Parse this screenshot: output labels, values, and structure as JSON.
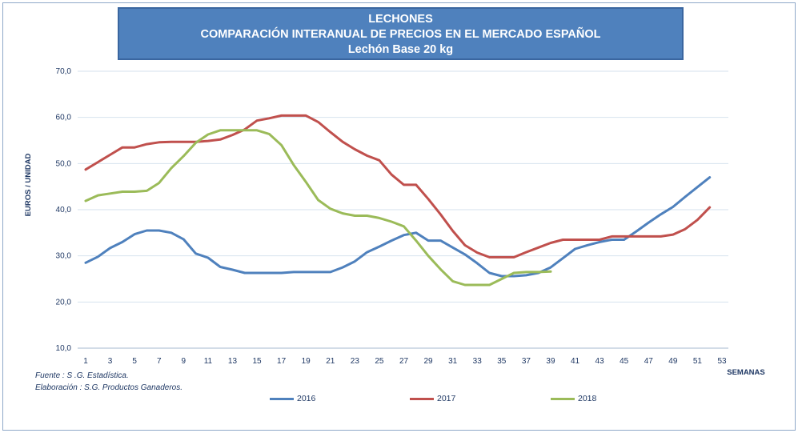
{
  "header": {
    "line1": "LECHONES",
    "line2": "COMPARACIÓN INTERANUAL DE PRECIOS EN EL MERCADO ESPAÑOL",
    "line3": "Lechón Base 20 kg"
  },
  "footer": {
    "source": "Fuente :  S .G. Estadística.",
    "elaboration": "Elaboración : S.G. Productos Ganaderos."
  },
  "chart_data": {
    "type": "line",
    "title": "LECHONES",
    "ylabel": "EUROS / UNIDAD",
    "xlabel": "SEMANAS",
    "ylim": [
      10,
      70
    ],
    "xlim": [
      1,
      53
    ],
    "y_ticks": [
      "10,0",
      "20,0",
      "30,0",
      "40,0",
      "50,0",
      "60,0",
      "70,0"
    ],
    "x_ticks": [
      1,
      3,
      5,
      7,
      9,
      11,
      13,
      15,
      17,
      19,
      21,
      23,
      25,
      27,
      29,
      31,
      33,
      35,
      37,
      39,
      41,
      43,
      45,
      47,
      49,
      51,
      53
    ],
    "grid": true,
    "legend_position": "bottom",
    "series": [
      {
        "name": "2016",
        "color": "#4f81bd",
        "x": [
          1,
          2,
          3,
          4,
          5,
          6,
          7,
          8,
          9,
          10,
          11,
          12,
          13,
          14,
          15,
          16,
          17,
          18,
          19,
          20,
          21,
          22,
          23,
          24,
          25,
          26,
          27,
          28,
          29,
          30,
          31,
          32,
          33,
          34,
          35,
          36,
          37,
          38,
          39,
          40,
          41,
          42,
          43,
          44,
          45,
          46,
          47,
          48,
          49,
          50,
          51,
          52
        ],
        "values": [
          28.5,
          29.8,
          31.7,
          33,
          34.7,
          35.5,
          35.5,
          35,
          33.6,
          30.5,
          29.6,
          27.6,
          27,
          26.3,
          26.3,
          26.3,
          26.3,
          26.5,
          26.5,
          26.5,
          26.5,
          27.5,
          28.8,
          30.8,
          32,
          33.3,
          34.5,
          35,
          33.3,
          33.3,
          31.8,
          30.3,
          28.4,
          26.3,
          25.6,
          25.6,
          25.8,
          26.3,
          27.5,
          29.5,
          31.5,
          32.3,
          33,
          33.5,
          33.5,
          35.3,
          37.2,
          39,
          40.6,
          42.8,
          44.9,
          47
        ]
      },
      {
        "name": "2017",
        "color": "#c0504d",
        "x": [
          1,
          2,
          3,
          4,
          5,
          6,
          7,
          8,
          9,
          10,
          11,
          12,
          13,
          14,
          15,
          16,
          17,
          18,
          19,
          20,
          21,
          22,
          23,
          24,
          25,
          26,
          27,
          28,
          29,
          30,
          31,
          32,
          33,
          34,
          35,
          36,
          37,
          38,
          39,
          40,
          41,
          42,
          43,
          44,
          45,
          46,
          47,
          48,
          49,
          50,
          51,
          52
        ],
        "values": [
          48.7,
          50.3,
          51.9,
          53.5,
          53.5,
          54.2,
          54.6,
          54.7,
          54.7,
          54.7,
          54.9,
          55.2,
          56.2,
          57.4,
          59.3,
          59.8,
          60.4,
          60.4,
          60.4,
          59,
          56.8,
          54.7,
          53.1,
          51.7,
          50.7,
          47.6,
          45.4,
          45.4,
          42.3,
          39,
          35.4,
          32.3,
          30.7,
          29.7,
          29.7,
          29.7,
          30.8,
          31.8,
          32.8,
          33.5,
          33.5,
          33.5,
          33.5,
          34.2,
          34.2,
          34.2,
          34.2,
          34.2,
          34.6,
          35.8,
          37.8,
          40.5
        ]
      },
      {
        "name": "2018",
        "color": "#9bbb59",
        "x": [
          1,
          2,
          3,
          4,
          5,
          6,
          7,
          8,
          9,
          10,
          11,
          12,
          13,
          14,
          15,
          16,
          17,
          18,
          19,
          20,
          21,
          22,
          23,
          24,
          25,
          26,
          27,
          28,
          29,
          30,
          31,
          32,
          33,
          34,
          35,
          36,
          37,
          38,
          39
        ],
        "values": [
          41.9,
          43.1,
          43.5,
          43.9,
          43.9,
          44.1,
          45.8,
          49,
          51.6,
          54.5,
          56.3,
          57.2,
          57.2,
          57.2,
          57.2,
          56.4,
          54,
          49.7,
          46,
          42.1,
          40.2,
          39.2,
          38.7,
          38.7,
          38.2,
          37.4,
          36.4,
          33.3,
          30,
          27.1,
          24.5,
          23.7,
          23.7,
          23.7,
          25,
          26.3,
          26.5,
          26.5,
          26.6
        ]
      }
    ]
  }
}
